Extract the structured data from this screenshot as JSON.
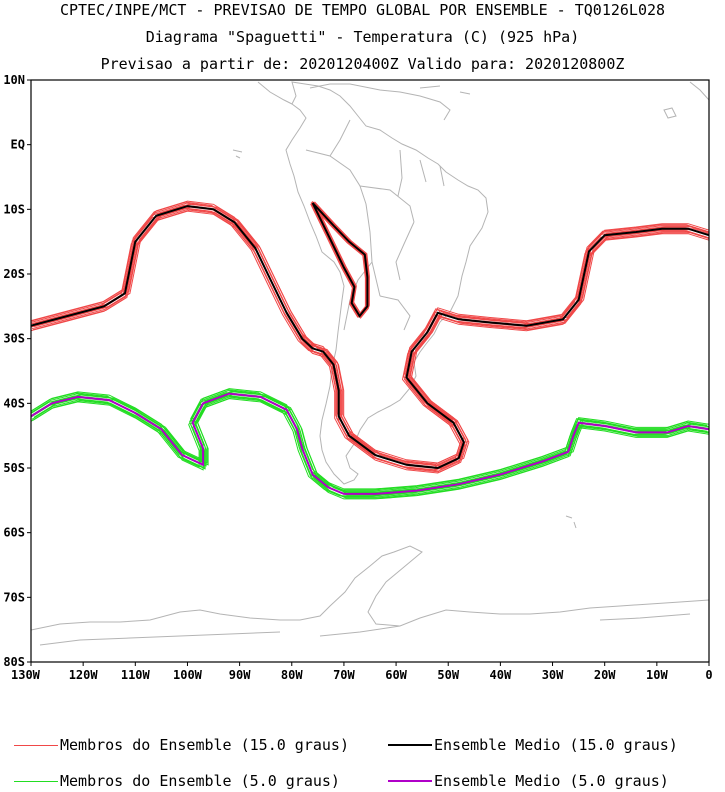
{
  "titles": {
    "line1": "CPTEC/INPE/MCT - PREVISAO DE TEMPO GLOBAL POR ENSEMBLE - TQ0126L028",
    "line2": "Diagrama \"Spaguetti\" - Temperatura (C) (925 hPa)",
    "line3": "Previsao a partir de: 2020120400Z  Valido para: 2020120800Z"
  },
  "axes": {
    "lat_labels": [
      "10N",
      "EQ",
      "10S",
      "20S",
      "30S",
      "40S",
      "50S",
      "60S",
      "70S",
      "80S"
    ],
    "lon_labels": [
      "130W",
      "120W",
      "110W",
      "100W",
      "90W",
      "80W",
      "70W",
      "60W",
      "50W",
      "40W",
      "30W",
      "20W",
      "10W",
      "0"
    ]
  },
  "legend": {
    "red_members": "Membros do Ensemble (15.0 graus)",
    "black_mean": "Ensemble Medio (15.0 graus)",
    "green_members": "Membros do Ensemble (5.0 graus)",
    "purple_mean": "Ensemble Medio (5.0 graus)"
  },
  "colors": {
    "red_members": "#f04848",
    "black_mean": "#000000",
    "green_members": "#22dd22",
    "purple_mean": "#b000c8",
    "coast": "#b4b4b4"
  },
  "isotherms": {
    "t15_mean": [
      [
        -130,
        -28
      ],
      [
        -123,
        -26.5
      ],
      [
        -116,
        -25
      ],
      [
        -112,
        -23
      ],
      [
        -110,
        -15
      ],
      [
        -106,
        -11
      ],
      [
        -100,
        -9.5
      ],
      [
        -95,
        -10
      ],
      [
        -91,
        -12
      ],
      [
        -87,
        -16
      ],
      [
        -84,
        -21
      ],
      [
        -81,
        -26
      ],
      [
        -78,
        -30
      ],
      [
        -76,
        -31.5
      ],
      [
        -74,
        -32
      ],
      [
        -72,
        -34
      ],
      [
        -71,
        -38
      ],
      [
        -71,
        -42
      ],
      [
        -69,
        -45
      ],
      [
        -64,
        -48
      ],
      [
        -58,
        -49.5
      ],
      [
        -52,
        -50
      ],
      [
        -48,
        -48.5
      ],
      [
        -47,
        -46
      ],
      [
        -49,
        -43
      ],
      [
        -54,
        -40
      ],
      [
        -58,
        -36
      ],
      [
        -57,
        -32
      ],
      [
        -54,
        -29
      ],
      [
        -52,
        -26
      ],
      [
        -48,
        -27
      ],
      [
        -42,
        -27.5
      ],
      [
        -35,
        -28
      ],
      [
        -28,
        -27
      ],
      [
        -25,
        -24
      ],
      [
        -23,
        -16.5
      ],
      [
        -20,
        -14
      ],
      [
        -14,
        -13.5
      ],
      [
        -9,
        -13
      ],
      [
        -4,
        -13
      ],
      [
        0,
        -14
      ]
    ],
    "t15_mean_andes": [
      [
        -76,
        -9
      ],
      [
        -72,
        -12.5
      ],
      [
        -69,
        -15
      ],
      [
        -66,
        -17
      ],
      [
        -65.5,
        -20.5
      ],
      [
        -65.5,
        -25
      ],
      [
        -67,
        -26.5
      ],
      [
        -68.5,
        -24.5
      ],
      [
        -68,
        -22
      ],
      [
        -70,
        -19
      ],
      [
        -73,
        -14
      ],
      [
        -76,
        -9
      ]
    ],
    "t5_mean": [
      [
        -130,
        -42
      ],
      [
        -126,
        -40
      ],
      [
        -121,
        -39
      ],
      [
        -115,
        -39.5
      ],
      [
        -110,
        -41.5
      ],
      [
        -105,
        -44
      ],
      [
        -101,
        -48
      ],
      [
        -97,
        -49.5
      ],
      [
        -97,
        -47
      ],
      [
        -99,
        -43
      ],
      [
        -97,
        -40
      ],
      [
        -92,
        -38.5
      ],
      [
        -86,
        -39
      ],
      [
        -81,
        -41
      ],
      [
        -79,
        -44
      ],
      [
        -78,
        -47
      ],
      [
        -76,
        -51
      ],
      [
        -73,
        -53
      ],
      [
        -70,
        -54
      ],
      [
        -64,
        -54
      ],
      [
        -56,
        -53.5
      ],
      [
        -48,
        -52.5
      ],
      [
        -40,
        -51
      ],
      [
        -32,
        -49
      ],
      [
        -27,
        -47.5
      ],
      [
        -26,
        -45
      ],
      [
        -25,
        -43
      ],
      [
        -20,
        -43.5
      ],
      [
        -14,
        -44.5
      ],
      [
        -8,
        -44.5
      ],
      [
        -4,
        -43.5
      ],
      [
        0,
        -44
      ]
    ]
  }
}
